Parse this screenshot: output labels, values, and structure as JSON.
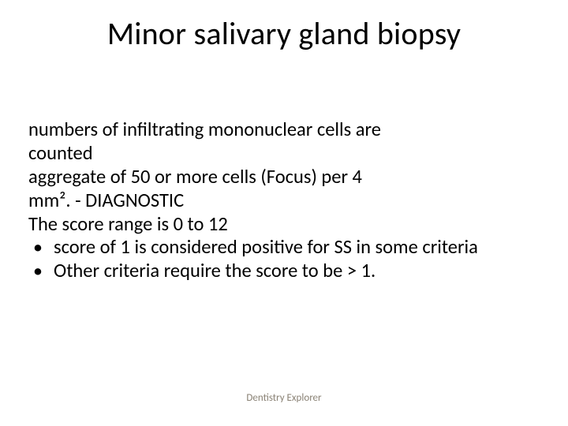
{
  "title": "Minor salivary gland biopsy",
  "body": {
    "p1": "numbers of infiltrating mononuclear cells are",
    "p2": "counted",
    "p3": "aggregate of 50 or more cells (Focus) per 4",
    "p4": "mm². - DIAGNOSTIC",
    "p5": "The score range is 0 to 12",
    "bullets": [
      "score of 1 is considered positive for SS in some criteria",
      "Other criteria require the score to be > 1."
    ]
  },
  "footer": "Dentistry Explorer",
  "style": {
    "background": "#ffffff",
    "text_color": "#000000",
    "footer_color": "#8a8275",
    "title_fontsize": 40,
    "body_fontsize": 24.5,
    "footer_fontsize": 13,
    "font_family": "Calibri"
  }
}
